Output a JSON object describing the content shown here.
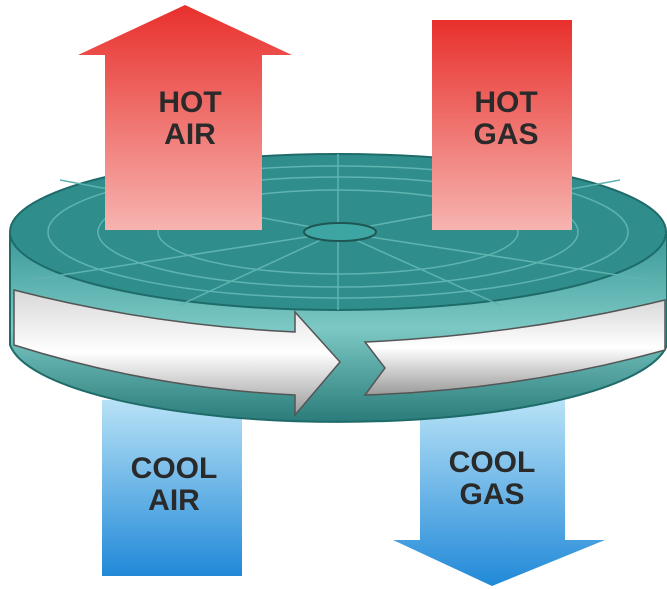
{
  "nodes": [
    {
      "lines": [
        "HOT",
        "AIR"
      ]
    },
    {
      "lines": [
        "HOT",
        "GAS"
      ]
    },
    {
      "lines": [
        "COOL",
        "AIR"
      ]
    },
    {
      "lines": [
        "COOL",
        "GAS"
      ]
    }
  ]
}
